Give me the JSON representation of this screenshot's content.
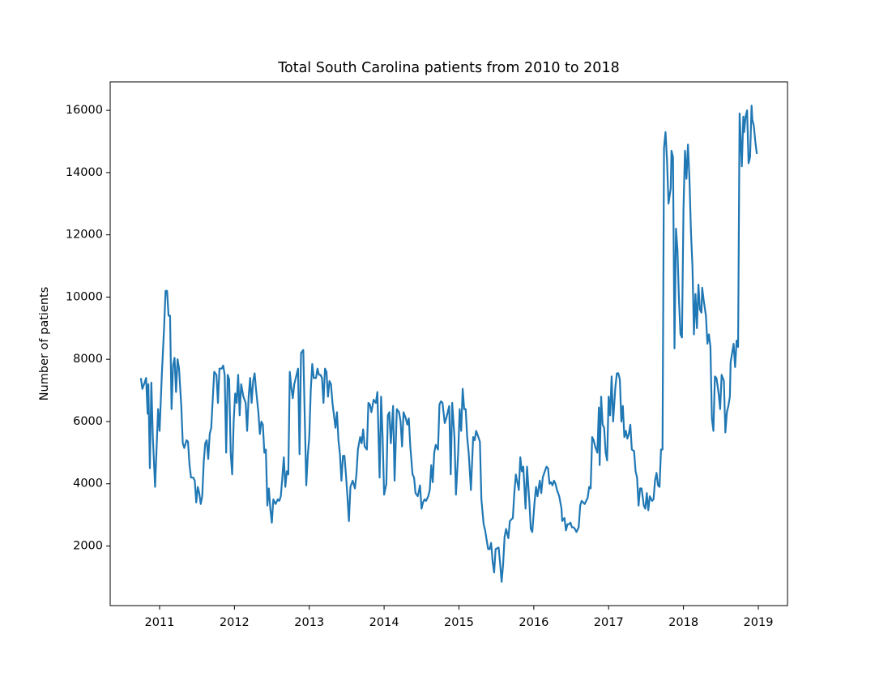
{
  "chart_data": {
    "type": "line",
    "title": "Total South Carolina patients from 2010 to 2018",
    "ylabel": "Number of patients",
    "color": "#1f77b4",
    "xlim": [
      2010.34,
      2019.39
    ],
    "xticks": [
      2011,
      2012,
      2013,
      2014,
      2015,
      2016,
      2017,
      2018,
      2019
    ],
    "ylim": [
      85,
      16915
    ],
    "yticks": [
      2000,
      4000,
      6000,
      8000,
      10000,
      12000,
      14000,
      16000
    ],
    "grid": false,
    "x": [
      2010.75,
      2010.77,
      2010.8,
      2010.82,
      2010.84,
      2010.85,
      2010.87,
      2010.89,
      2010.91,
      2010.94,
      2010.98,
      2011.0,
      2011.03,
      2011.06,
      2011.08,
      2011.1,
      2011.12,
      2011.14,
      2011.16,
      2011.18,
      2011.2,
      2011.22,
      2011.24,
      2011.26,
      2011.29,
      2011.31,
      2011.33,
      2011.36,
      2011.38,
      2011.4,
      2011.42,
      2011.45,
      2011.47,
      2011.49,
      2011.51,
      2011.53,
      2011.55,
      2011.57,
      2011.59,
      2011.61,
      2011.63,
      2011.65,
      2011.67,
      2011.69,
      2011.73,
      2011.76,
      2011.78,
      2011.8,
      2011.83,
      2011.85,
      2011.87,
      2011.89,
      2011.91,
      2011.93,
      2011.95,
      2011.97,
      2011.99,
      2012.01,
      2012.03,
      2012.05,
      2012.07,
      2012.09,
      2012.12,
      2012.15,
      2012.17,
      2012.19,
      2012.21,
      2012.23,
      2012.25,
      2012.27,
      2012.29,
      2012.32,
      2012.34,
      2012.36,
      2012.38,
      2012.4,
      2012.42,
      2012.44,
      2012.46,
      2012.48,
      2012.5,
      2012.52,
      2012.55,
      2012.58,
      2012.6,
      2012.62,
      2012.64,
      2012.66,
      2012.68,
      2012.7,
      2012.72,
      2012.74,
      2012.76,
      2012.78,
      2012.8,
      2012.83,
      2012.85,
      2012.87,
      2012.89,
      2012.92,
      2012.94,
      2012.96,
      2012.98,
      2013.0,
      2013.02,
      2013.04,
      2013.06,
      2013.09,
      2013.11,
      2013.13,
      2013.15,
      2013.17,
      2013.19,
      2013.21,
      2013.23,
      2013.25,
      2013.27,
      2013.29,
      2013.31,
      2013.35,
      2013.37,
      2013.39,
      2013.41,
      2013.43,
      2013.45,
      2013.47,
      2013.49,
      2013.51,
      2013.53,
      2013.55,
      2013.58,
      2013.61,
      2013.63,
      2013.65,
      2013.68,
      2013.7,
      2013.72,
      2013.74,
      2013.77,
      2013.79,
      2013.81,
      2013.83,
      2013.86,
      2013.89,
      2013.91,
      2013.94,
      2013.96,
      2013.98,
      2014.0,
      2014.03,
      2014.05,
      2014.07,
      2014.09,
      2014.12,
      2014.14,
      2014.17,
      2014.2,
      2014.22,
      2014.24,
      2014.26,
      2014.29,
      2014.31,
      2014.33,
      2014.35,
      2014.38,
      2014.4,
      2014.42,
      2014.45,
      2014.48,
      2014.5,
      2014.52,
      2014.54,
      2014.56,
      2014.59,
      2014.61,
      2014.63,
      2014.65,
      2014.67,
      2014.69,
      2014.72,
      2014.74,
      2014.76,
      2014.78,
      2014.81,
      2014.83,
      2014.85,
      2014.87,
      2014.89,
      2014.91,
      2014.94,
      2014.96,
      2014.99,
      2015.01,
      2015.03,
      2015.05,
      2015.07,
      2015.09,
      2015.11,
      2015.13,
      2015.16,
      2015.19,
      2015.21,
      2015.23,
      2015.26,
      2015.28,
      2015.3,
      2015.33,
      2015.35,
      2015.37,
      2015.39,
      2015.41,
      2015.43,
      2015.45,
      2015.47,
      2015.49,
      2015.53,
      2015.55,
      2015.57,
      2015.59,
      2015.61,
      2015.63,
      2015.66,
      2015.68,
      2015.7,
      2015.72,
      2015.74,
      2015.76,
      2015.8,
      2015.82,
      2015.84,
      2015.86,
      2015.89,
      2015.91,
      2015.94,
      2015.96,
      2015.98,
      2016.01,
      2016.03,
      2016.05,
      2016.08,
      2016.1,
      2016.12,
      2016.14,
      2016.17,
      2016.19,
      2016.21,
      2016.23,
      2016.25,
      2016.27,
      2016.29,
      2016.31,
      2016.34,
      2016.37,
      2016.38,
      2016.41,
      2016.43,
      2016.45,
      2016.47,
      2016.49,
      2016.51,
      2016.53,
      2016.55,
      2016.57,
      2016.6,
      2016.62,
      2016.64,
      2016.66,
      2016.68,
      2016.7,
      2016.72,
      2016.74,
      2016.76,
      2016.78,
      2016.8,
      2016.82,
      2016.85,
      2016.87,
      2016.88,
      2016.9,
      2016.92,
      2016.94,
      2016.96,
      2016.98,
      2017.0,
      2017.02,
      2017.04,
      2017.06,
      2017.09,
      2017.11,
      2017.13,
      2017.15,
      2017.17,
      2017.19,
      2017.21,
      2017.23,
      2017.25,
      2017.27,
      2017.29,
      2017.31,
      2017.34,
      2017.36,
      2017.38,
      2017.4,
      2017.42,
      2017.44,
      2017.46,
      2017.47,
      2017.49,
      2017.51,
      2017.53,
      2017.55,
      2017.58,
      2017.6,
      2017.62,
      2017.64,
      2017.66,
      2017.68,
      2017.7,
      2017.72,
      2017.74,
      2017.76,
      2017.78,
      2017.8,
      2017.83,
      2017.84,
      2017.86,
      2017.88,
      2017.9,
      2017.92,
      2017.94,
      2017.96,
      2017.98,
      2018.0,
      2018.02,
      2018.04,
      2018.06,
      2018.08,
      2018.1,
      2018.12,
      2018.14,
      2018.16,
      2018.18,
      2018.2,
      2018.22,
      2018.24,
      2018.25,
      2018.27,
      2018.3,
      2018.32,
      2018.34,
      2018.36,
      2018.38,
      2018.4,
      2018.42,
      2018.44,
      2018.45,
      2018.47,
      2018.49,
      2018.51,
      2018.54,
      2018.56,
      2018.58,
      2018.6,
      2018.62,
      2018.63,
      2018.65,
      2018.67,
      2018.69,
      2018.71,
      2018.73,
      2018.75,
      2018.78,
      2018.8,
      2018.81,
      2018.83,
      2018.85,
      2018.87,
      2018.89,
      2018.91,
      2018.92,
      2018.94,
      2018.96,
      2018.98
    ],
    "values": [
      7400,
      7050,
      7250,
      7400,
      6250,
      7200,
      4500,
      7250,
      5500,
      3900,
      6400,
      5700,
      7500,
      9000,
      10200,
      10200,
      9400,
      9400,
      6400,
      7800,
      8050,
      6950,
      8000,
      7700,
      6500,
      5300,
      5150,
      5400,
      5350,
      4600,
      4200,
      4200,
      4100,
      3400,
      3900,
      3700,
      3350,
      3600,
      4700,
      5300,
      5400,
      4800,
      5600,
      5800,
      7600,
      7500,
      6600,
      7700,
      7700,
      7800,
      7500,
      5000,
      7500,
      7350,
      5000,
      4300,
      6000,
      6900,
      6600,
      7500,
      6200,
      7200,
      6800,
      6600,
      5700,
      6800,
      7400,
      6600,
      7300,
      7550,
      7000,
      6300,
      5600,
      6000,
      5900,
      5000,
      5100,
      3300,
      3850,
      3200,
      2750,
      3500,
      3350,
      3500,
      3450,
      3600,
      4200,
      4850,
      3900,
      4400,
      4300,
      7600,
      7100,
      6750,
      7200,
      7500,
      7700,
      4950,
      8200,
      8300,
      6100,
      3950,
      4900,
      5500,
      7000,
      7850,
      7400,
      7400,
      7700,
      7500,
      7500,
      7400,
      6600,
      7700,
      7600,
      6800,
      7300,
      7200,
      6600,
      5800,
      6300,
      5400,
      4950,
      4100,
      4900,
      4900,
      4300,
      3600,
      2800,
      3900,
      4100,
      3850,
      4300,
      5100,
      5500,
      5300,
      5750,
      5200,
      5100,
      6600,
      6550,
      6300,
      6700,
      6600,
      6950,
      4200,
      6800,
      5500,
      3650,
      4000,
      6200,
      6300,
      5300,
      6500,
      4100,
      6400,
      6300,
      6000,
      5200,
      6300,
      6100,
      5900,
      6100,
      5200,
      4300,
      4200,
      3700,
      3600,
      3950,
      3200,
      3400,
      3500,
      3450,
      3600,
      3800,
      4600,
      4050,
      5000,
      5250,
      5100,
      6550,
      6650,
      6600,
      5950,
      6100,
      6300,
      6500,
      4300,
      6600,
      5500,
      3650,
      5000,
      6400,
      5700,
      7050,
      6400,
      6400,
      5500,
      5000,
      3800,
      5500,
      5400,
      5700,
      5500,
      5350,
      3500,
      2700,
      2500,
      2200,
      1900,
      1900,
      2100,
      1500,
      1150,
      1900,
      1950,
      1450,
      850,
      1400,
      2300,
      2550,
      2250,
      2800,
      2850,
      2900,
      3700,
      4300,
      3800,
      4850,
      4400,
      4550,
      3200,
      4550,
      3450,
      2550,
      2450,
      3400,
      3900,
      3600,
      4100,
      3700,
      4200,
      4350,
      4550,
      4500,
      4000,
      4050,
      3950,
      4100,
      4000,
      3800,
      3600,
      3200,
      2800,
      2900,
      2500,
      2700,
      2700,
      2750,
      2600,
      2600,
      2550,
      2450,
      2600,
      3300,
      3450,
      3400,
      3350,
      3450,
      3550,
      3900,
      3850,
      5500,
      5400,
      5200,
      5000,
      6450,
      4600,
      6800,
      5900,
      5800,
      5000,
      4750,
      6800,
      6200,
      7450,
      6000,
      7100,
      7550,
      7550,
      7350,
      6000,
      6500,
      5500,
      5700,
      5450,
      5600,
      5900,
      5100,
      5050,
      4400,
      4200,
      3300,
      3850,
      3850,
      3500,
      3300,
      3200,
      3700,
      3150,
      3600,
      3450,
      3500,
      4100,
      4350,
      3950,
      3900,
      5100,
      5100,
      14800,
      15300,
      14400,
      13000,
      13500,
      14700,
      14500,
      8350,
      12200,
      11500,
      9900,
      8800,
      8700,
      12800,
      14700,
      13800,
      14900,
      13800,
      12100,
      11000,
      8800,
      10100,
      9000,
      10400,
      9600,
      9500,
      10300,
      9900,
      9400,
      8500,
      8800,
      8400,
      6100,
      5700,
      7450,
      7400,
      7250,
      6900,
      6400,
      7500,
      7300,
      5650,
      6300,
      6500,
      6800,
      7900,
      8200,
      8500,
      7750,
      8600,
      8400,
      15900,
      14200,
      15800,
      15300,
      15800,
      16000,
      14300,
      14500,
      16150,
      15700,
      15500,
      15000,
      14600
    ]
  }
}
